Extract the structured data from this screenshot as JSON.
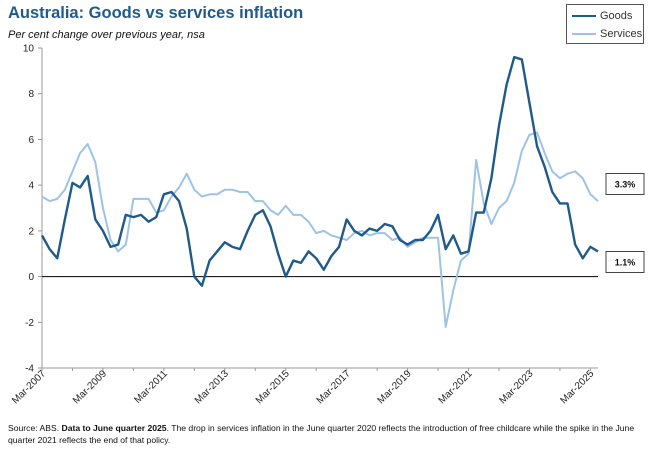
{
  "header": {
    "title": "Australia: Goods vs services inflation",
    "subtitle": "Per cent change over previous year, nsa"
  },
  "source": {
    "prefix": "Source: ABS.",
    "bold": "Data to June quarter 2025",
    "text": ". The drop in services inflation in the June quarter 2020 reflects the introduction of free childcare while the spike in the June quarter 2021 reflects the end of that policy."
  },
  "colors": {
    "goods": "#1f5a8a",
    "services": "#9dc3e6",
    "zero_line": "#000000",
    "axis": "#999999"
  },
  "chart_data": {
    "type": "line",
    "title": "Australia: Goods vs services inflation",
    "ylabel": "Per cent change over previous year, nsa",
    "xlabel": "",
    "ylim": [
      -4,
      10
    ],
    "yticks": [
      -4,
      -2,
      0,
      2,
      4,
      6,
      8,
      10
    ],
    "grid": false,
    "legend_position": "top-right",
    "x_start_label": "Mar-2007",
    "x_tick_labels": [
      "Mar-2007",
      "Mar-2009",
      "Mar-2011",
      "Mar-2013",
      "Mar-2015",
      "Mar-2017",
      "Mar-2019",
      "Mar-2021",
      "Mar-2023",
      "Mar-2025"
    ],
    "x_tick_every": 8,
    "series": [
      {
        "name": "Goods",
        "values": [
          1.8,
          1.2,
          0.8,
          2.5,
          4.1,
          3.9,
          4.4,
          2.5,
          2.0,
          1.3,
          1.4,
          2.7,
          2.6,
          2.7,
          2.4,
          2.6,
          3.6,
          3.7,
          3.3,
          2.1,
          0.0,
          -0.4,
          0.7,
          1.1,
          1.5,
          1.3,
          1.2,
          2.0,
          2.7,
          2.9,
          2.2,
          1.0,
          0.0,
          0.7,
          0.6,
          1.1,
          0.8,
          0.3,
          0.9,
          1.3,
          2.5,
          2.0,
          1.8,
          2.1,
          2.0,
          2.3,
          2.2,
          1.6,
          1.4,
          1.6,
          1.6,
          2.0,
          2.7,
          1.2,
          1.8,
          1.0,
          1.1,
          2.8,
          2.8,
          4.3,
          6.6,
          8.4,
          9.6,
          9.5,
          7.6,
          5.7,
          4.8,
          3.7,
          3.2,
          3.2,
          1.4,
          0.8,
          1.3,
          1.1
        ],
        "end_label": "1.1%"
      },
      {
        "name": "Services",
        "values": [
          3.5,
          3.3,
          3.4,
          3.8,
          4.6,
          5.4,
          5.8,
          5.0,
          3.0,
          1.6,
          1.1,
          1.4,
          3.4,
          3.4,
          3.4,
          2.8,
          2.9,
          3.5,
          3.9,
          4.5,
          3.8,
          3.5,
          3.6,
          3.6,
          3.8,
          3.8,
          3.7,
          3.7,
          3.3,
          3.3,
          2.9,
          2.7,
          3.1,
          2.7,
          2.7,
          2.4,
          1.9,
          2.0,
          1.8,
          1.7,
          1.6,
          1.9,
          2.0,
          1.8,
          1.9,
          1.9,
          1.6,
          1.7,
          1.3,
          1.5,
          1.7,
          1.7,
          1.7,
          -2.2,
          -0.6,
          0.7,
          1.0,
          5.1,
          3.2,
          2.3,
          3.0,
          3.3,
          4.1,
          5.5,
          6.2,
          6.3,
          5.4,
          4.6,
          4.3,
          4.5,
          4.6,
          4.3,
          3.6,
          3.3
        ],
        "end_label": "3.3%"
      }
    ]
  }
}
